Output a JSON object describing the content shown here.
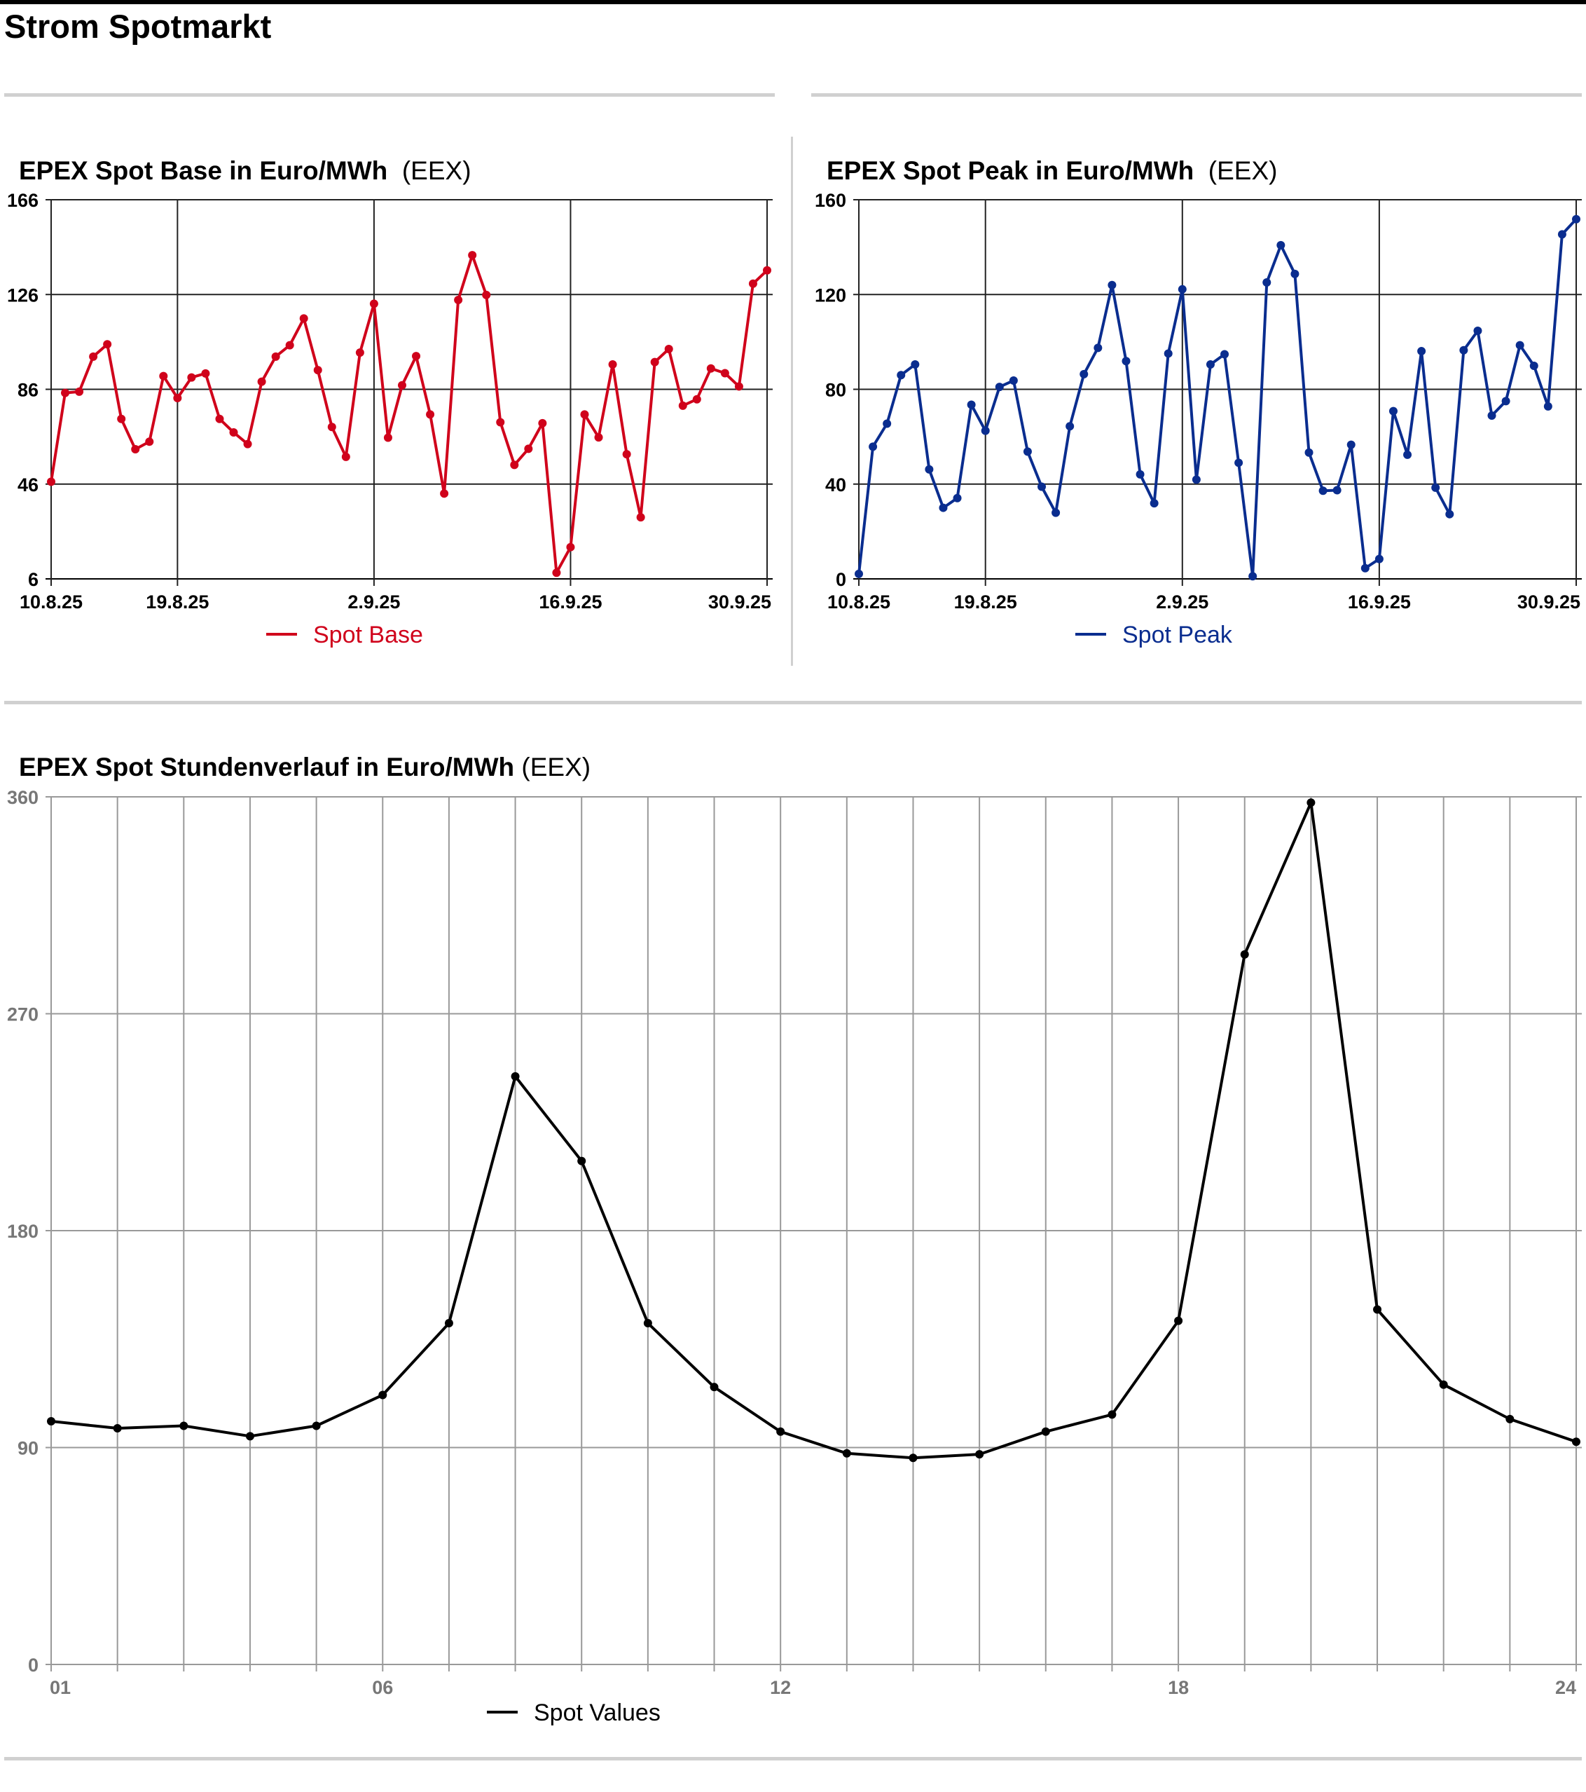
{
  "page": {
    "title": "Strom Spotmarkt"
  },
  "chart_data": [
    {
      "id": "base",
      "type": "line",
      "title": "EPEX Spot Base in Euro/MWh",
      "source": "(EEX)",
      "series_name": "Spot Base",
      "color": "#d0021b",
      "ylim": [
        6,
        166
      ],
      "yticks": [
        "6",
        "46",
        "86",
        "126",
        "166"
      ],
      "ytick_values": [
        6,
        46,
        86,
        126,
        166
      ],
      "xticks": [
        {
          "label": "10.8.25",
          "index": 0
        },
        {
          "label": "19.8.25",
          "index": 9
        },
        {
          "label": "2.9.25",
          "index": 23
        },
        {
          "label": "16.9.25",
          "index": 37
        },
        {
          "label": "30.9.25",
          "index": 51
        }
      ],
      "legend": "bottom",
      "values": [
        47,
        84.5,
        85,
        99.8,
        105,
        73.5,
        60.7,
        63.9,
        91.6,
        82.3,
        91,
        92.7,
        73.5,
        67.8,
        62.9,
        89.2,
        99.8,
        104.6,
        115.9,
        94.1,
        70.1,
        57.5,
        101.5,
        122.1,
        65.6,
        87.7,
        100,
        75.4,
        42,
        123.7,
        142.6,
        125.8,
        72.1,
        54.1,
        60.9,
        71.7,
        8.6,
        19.4,
        75.4,
        65.7,
        96.5,
        58.6,
        32,
        97.5,
        103,
        79.1,
        81.8,
        94.8,
        92.8,
        87.2,
        130.6,
        136.2
      ]
    },
    {
      "id": "peak",
      "type": "line",
      "title": "EPEX Spot Peak in Euro/MWh",
      "source": "(EEX)",
      "series_name": "Spot Peak",
      "color": "#0a2d8f",
      "ylim": [
        0,
        160
      ],
      "yticks": [
        "0",
        "40",
        "80",
        "120",
        "160"
      ],
      "ytick_values": [
        0,
        40,
        80,
        120,
        160
      ],
      "xticks": [
        {
          "label": "10.8.25",
          "index": 0
        },
        {
          "label": "19.8.25",
          "index": 9
        },
        {
          "label": "2.9.25",
          "index": 23
        },
        {
          "label": "16.9.25",
          "index": 37
        },
        {
          "label": "30.9.25",
          "index": 51
        }
      ],
      "legend": "bottom",
      "values": [
        2.1,
        55.8,
        65.5,
        86,
        90.5,
        46.2,
        30,
        34.1,
        73.5,
        62.5,
        81,
        83.7,
        53.7,
        38.9,
        27.9,
        64.4,
        86.4,
        97.5,
        124,
        91.9,
        44.1,
        31.9,
        95.1,
        122.2,
        41.9,
        90.5,
        94.8,
        49,
        1.1,
        125.1,
        140.8,
        128.7,
        53.3,
        37.2,
        37.4,
        56.6,
        4.5,
        8.4,
        70.8,
        52.4,
        96.1,
        38.5,
        27.3,
        96.5,
        104.7,
        68.9,
        75,
        98.6,
        89.9,
        72.8,
        145.4,
        151.8
      ]
    },
    {
      "id": "hourly",
      "type": "line",
      "title": "EPEX Spot Stundenverlauf in Euro/MWh",
      "source": "(EEX)",
      "series_name": "Spot Values",
      "color": "#000000",
      "ylim": [
        0,
        360
      ],
      "yticks": [
        "0",
        "90",
        "180",
        "270",
        "360"
      ],
      "ytick_values": [
        0,
        90,
        180,
        270,
        360
      ],
      "xticks": [
        {
          "label": "01",
          "index": 0
        },
        {
          "label": "06",
          "index": 5
        },
        {
          "label": "12",
          "index": 11
        },
        {
          "label": "18",
          "index": 17
        },
        {
          "label": "24",
          "index": 23
        }
      ],
      "legend": "bottom",
      "values": [
        100.9,
        98,
        99,
        94.7,
        99,
        111.8,
        141.6,
        244,
        208.9,
        141.6,
        115.1,
        96.6,
        87.6,
        85.7,
        87.2,
        96.6,
        103.7,
        142.6,
        294.6,
        357.6,
        147.3,
        116.1,
        101.8,
        92.4
      ]
    }
  ]
}
